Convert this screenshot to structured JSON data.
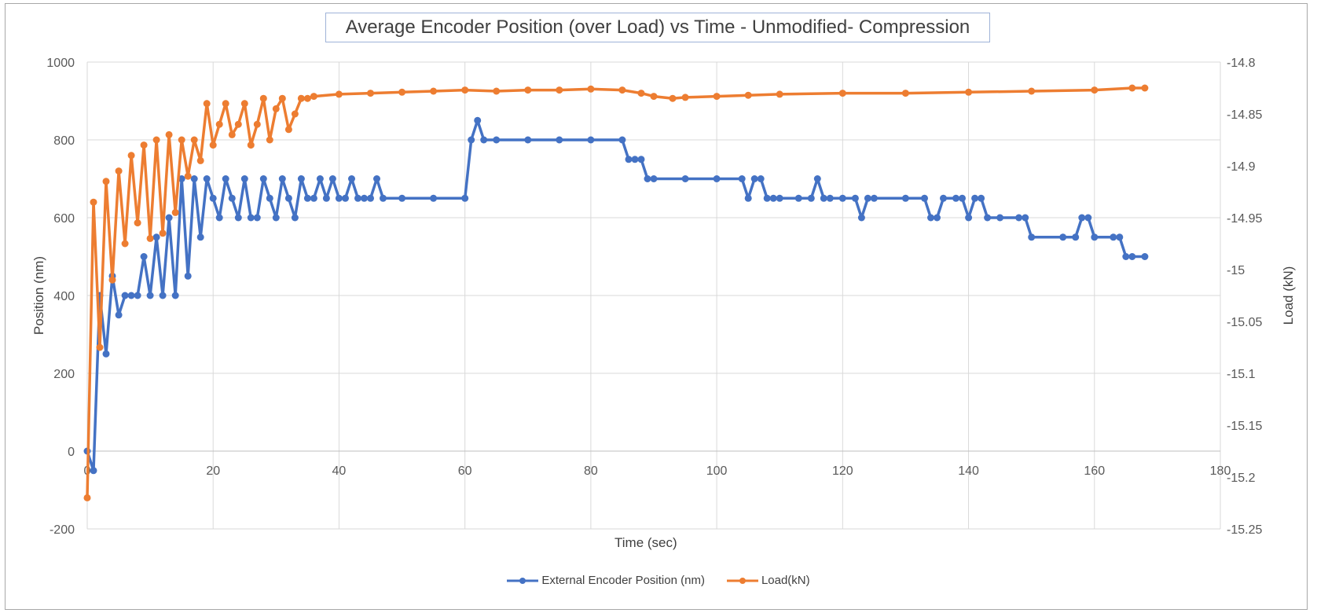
{
  "chart_data": {
    "type": "line",
    "title": "Average Encoder Position (over Load) vs Time - Unmodified- Compression",
    "xlabel": "Time (sec)",
    "ylabel": "Position (nm)",
    "y2label": "Load (kN)",
    "xlim": [
      0,
      180
    ],
    "ylim": [
      -200,
      1000
    ],
    "y2lim": [
      -15.25,
      -14.8
    ],
    "x_ticks": [
      "0",
      "20",
      "40",
      "60",
      "80",
      "100",
      "120",
      "140",
      "160",
      "180"
    ],
    "y_ticks": [
      "-200",
      "0",
      "200",
      "400",
      "600",
      "800",
      "1000"
    ],
    "y2_ticks": [
      "-15.25",
      "-15.2",
      "-15.15",
      "-15.1",
      "-15.05",
      "-15",
      "-14.95",
      "-14.9",
      "-14.85",
      "-14.8"
    ],
    "grid": true,
    "legend": "bottom",
    "series": [
      {
        "name": "External Encoder Position (nm)",
        "axis": "left",
        "color": "#4472c4",
        "x": [
          0,
          1,
          2,
          3,
          4,
          5,
          6,
          7,
          8,
          9,
          10,
          11,
          12,
          13,
          14,
          15,
          16,
          17,
          18,
          19,
          20,
          21,
          22,
          23,
          24,
          25,
          26,
          27,
          28,
          29,
          30,
          31,
          32,
          33,
          34,
          35,
          36,
          37,
          38,
          39,
          40,
          41,
          42,
          43,
          44,
          45,
          46,
          47,
          50,
          55,
          60,
          61,
          62,
          63,
          65,
          70,
          75,
          80,
          85,
          86,
          87,
          88,
          89,
          90,
          95,
          100,
          104,
          105,
          106,
          107,
          108,
          109,
          110,
          113,
          115,
          116,
          117,
          118,
          120,
          122,
          123,
          124,
          125,
          130,
          133,
          134,
          135,
          136,
          138,
          139,
          140,
          141,
          142,
          143,
          145,
          148,
          149,
          150,
          155,
          157,
          158,
          159,
          160,
          163,
          164,
          165,
          166,
          168
        ],
        "y": [
          0,
          -50,
          400,
          250,
          450,
          350,
          400,
          400,
          400,
          500,
          400,
          550,
          400,
          600,
          400,
          700,
          450,
          700,
          550,
          700,
          650,
          600,
          700,
          650,
          600,
          700,
          600,
          600,
          700,
          650,
          600,
          700,
          650,
          600,
          700,
          650,
          650,
          700,
          650,
          700,
          650,
          650,
          700,
          650,
          650,
          650,
          700,
          650,
          650,
          650,
          650,
          800,
          850,
          800,
          800,
          800,
          800,
          800,
          800,
          750,
          750,
          750,
          700,
          700,
          700,
          700,
          700,
          650,
          700,
          700,
          650,
          650,
          650,
          650,
          650,
          700,
          650,
          650,
          650,
          650,
          600,
          650,
          650,
          650,
          650,
          600,
          600,
          650,
          650,
          650,
          600,
          650,
          650,
          600,
          600,
          600,
          600,
          550,
          550,
          550,
          600,
          600,
          550,
          550,
          550,
          500,
          500,
          500
        ]
      },
      {
        "name": "Load(kN)",
        "axis": "right",
        "color": "#ed7d31",
        "x": [
          0,
          1,
          2,
          3,
          4,
          5,
          6,
          7,
          8,
          9,
          10,
          11,
          12,
          13,
          14,
          15,
          16,
          17,
          18,
          19,
          20,
          21,
          22,
          23,
          24,
          25,
          26,
          27,
          28,
          29,
          30,
          31,
          32,
          33,
          34,
          35,
          36,
          40,
          45,
          50,
          55,
          60,
          65,
          70,
          75,
          80,
          85,
          88,
          90,
          93,
          95,
          100,
          105,
          110,
          120,
          130,
          140,
          150,
          160,
          166,
          168
        ],
        "y": [
          -15.22,
          -14.935,
          -15.075,
          -14.915,
          -15.01,
          -14.905,
          -14.975,
          -14.89,
          -14.955,
          -14.88,
          -14.97,
          -14.875,
          -14.965,
          -14.87,
          -14.945,
          -14.875,
          -14.91,
          -14.875,
          -14.895,
          -14.84,
          -14.88,
          -14.86,
          -14.84,
          -14.87,
          -14.86,
          -14.84,
          -14.88,
          -14.86,
          -14.835,
          -14.875,
          -14.845,
          -14.835,
          -14.865,
          -14.85,
          -14.835,
          -14.835,
          -14.833,
          -14.831,
          -14.83,
          -14.829,
          -14.828,
          -14.827,
          -14.828,
          -14.827,
          -14.827,
          -14.826,
          -14.827,
          -14.83,
          -14.833,
          -14.835,
          -14.834,
          -14.833,
          -14.832,
          -14.831,
          -14.83,
          -14.83,
          -14.829,
          -14.828,
          -14.827,
          -14.825,
          -14.825
        ]
      }
    ]
  }
}
